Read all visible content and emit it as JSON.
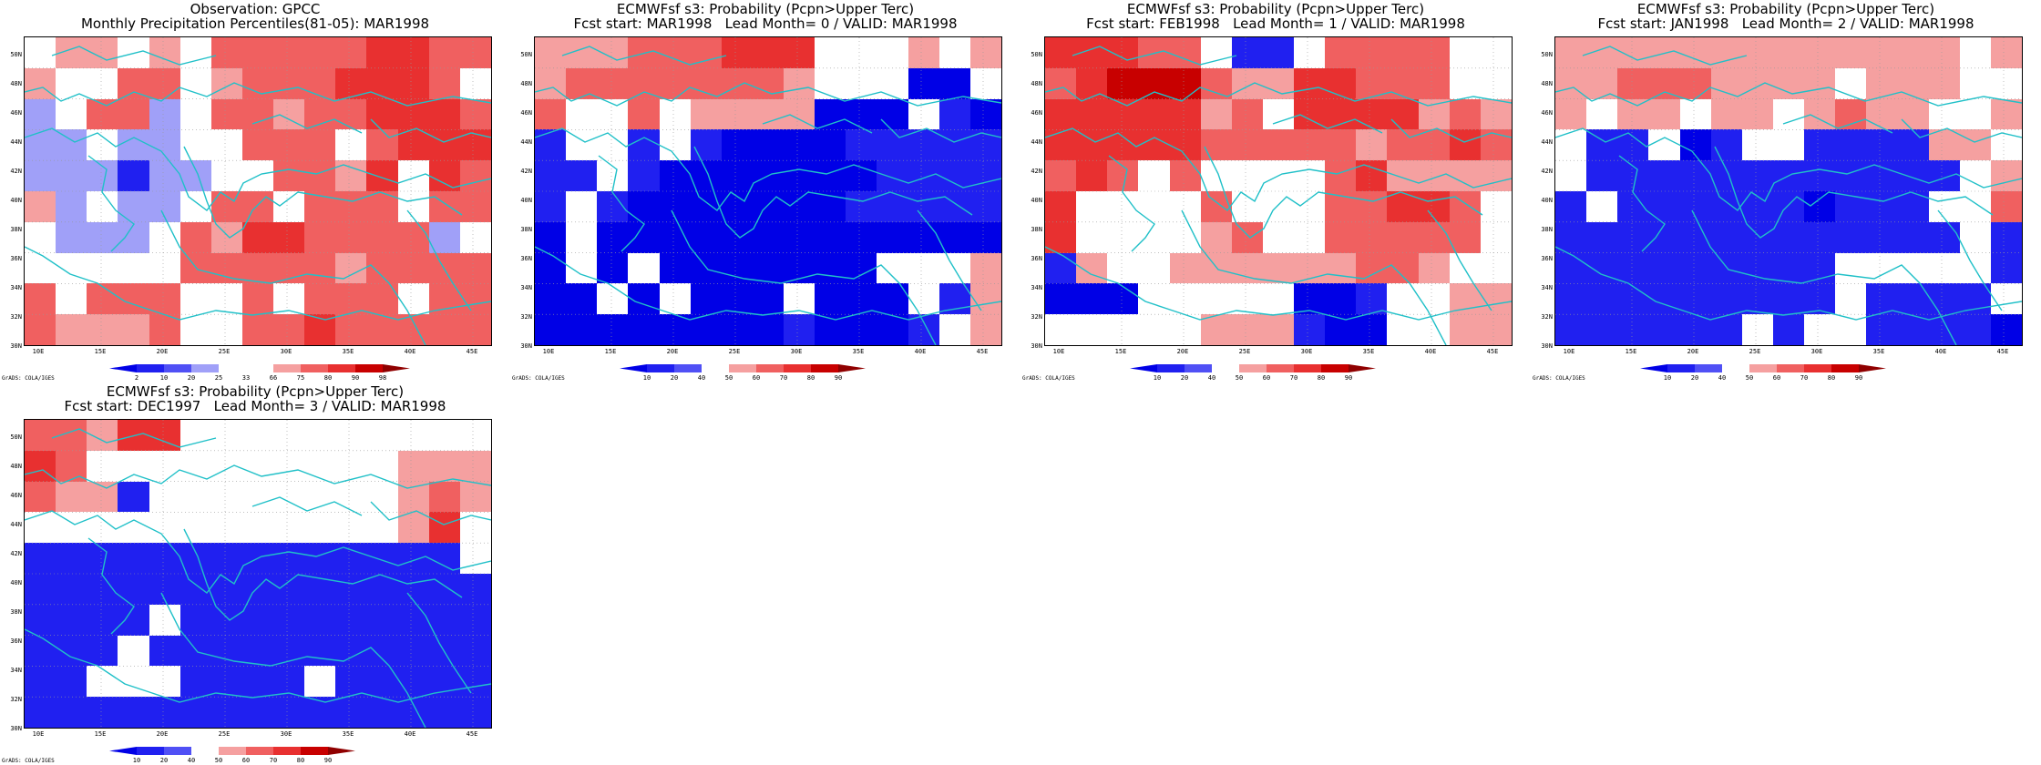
{
  "panels": [
    {
      "title1": "Observation: GPCC",
      "title2": "Monthly Precipitation Percentiles(81-05): MAR1998",
      "grid": [
        "12110022332424",
        "12202323432323",
        "02221222333323",
        "-122-021222322",
        "-2-2-0022320022",
        "1-2-22221224302",
        "-1--202322020-2",
        "0202201222211022",
        "0020220022322022",
        "2000023233222233"
      ],
      "colorbar_labels": [
        "2",
        "10",
        "20",
        "25",
        "33",
        "66",
        "75",
        "80",
        "90",
        "98"
      ]
    },
    {
      "title1": "ECMWFsf s3: Probability (Pcpn>Upper Terc)",
      "title2": "Fcst start: MAR1998   Lead Month= 0 / VALID: MAR1998",
      "colorbar_labels": [
        "10",
        "20",
        "40",
        "50",
        "60",
        "70",
        "80",
        "90"
      ]
    },
    {
      "title1": "ECMWFsf s3: Probability (Pcpn>Upper Terc)",
      "title2": "Fcst start: FEB1998   Lead Month= 1 / VALID: MAR1998",
      "colorbar_labels": [
        "10",
        "20",
        "40",
        "50",
        "60",
        "70",
        "80",
        "90"
      ]
    },
    {
      "title1": "ECMWFsf s3: Probability (Pcpn>Upper Terc)",
      "title2": "Fcst start: JAN1998   Lead Month= 2 / VALID: MAR1998",
      "colorbar_labels": [
        "10",
        "20",
        "40",
        "50",
        "60",
        "70",
        "80",
        "90"
      ]
    },
    {
      "title1": "ECMWFsf s3: Probability (Pcpn>Upper Terc)",
      "title2": "Fcst start: DEC1997   Lead Month= 3 / VALID: MAR1998",
      "colorbar_labels": [
        "10",
        "20",
        "40",
        "50",
        "60",
        "70",
        "80",
        "90"
      ]
    }
  ],
  "lat_labels": [
    "50N",
    "48N",
    "46N",
    "44N",
    "42N",
    "40N",
    "38N",
    "36N",
    "34N",
    "32N",
    "30N"
  ],
  "lon_labels": [
    "10E",
    "15E",
    "20E",
    "25E",
    "30E",
    "35E",
    "40E",
    "45E"
  ],
  "credit": "GrADS: COLA/IGES",
  "colors": {
    "dark_blue": "#0000e6",
    "blue": "#2020f0",
    "medium_blue": "#5050f5",
    "light_blue": "#a0a0f8",
    "white": "#ffffff",
    "light_red": "#f5a0a0",
    "red": "#f06060",
    "strong_red": "#e83030",
    "deep_red": "#c80000",
    "dark_red": "#900000",
    "coastline": "#20c0c8"
  }
}
